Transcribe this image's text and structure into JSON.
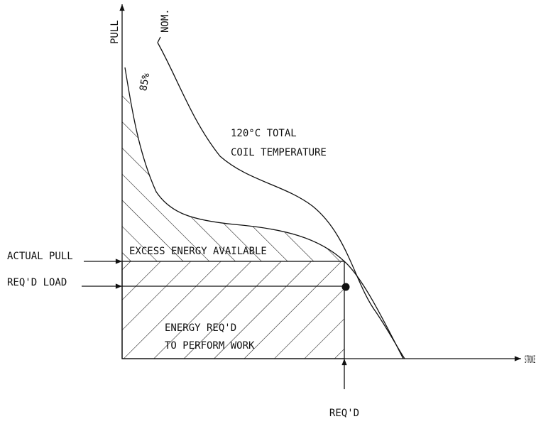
{
  "axes": {
    "y_label": "PULL",
    "x_label": "STROKE"
  },
  "curves": {
    "nominal": "NOM.",
    "derated": "85%"
  },
  "note": {
    "line1": "120°C TOTAL",
    "line2": "COIL TEMPERATURE"
  },
  "markers": {
    "actual_pull": "ACTUAL PULL",
    "required_load": "REQ'D LOAD",
    "required_stroke": "REQ'D"
  },
  "regions": {
    "excess": "EXCESS ENERGY AVAILABLE",
    "work_line1": "ENERGY REQ'D",
    "work_line2": "TO PERFORM WORK"
  }
}
